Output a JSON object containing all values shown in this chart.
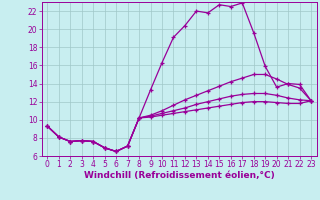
{
  "xlabel": "Windchill (Refroidissement éolien,°C)",
  "bg_color": "#c8eef0",
  "line_color": "#990099",
  "xlim": [
    -0.5,
    23.5
  ],
  "ylim": [
    6,
    23
  ],
  "xticks": [
    0,
    1,
    2,
    3,
    4,
    5,
    6,
    7,
    8,
    9,
    10,
    11,
    12,
    13,
    14,
    15,
    16,
    17,
    18,
    19,
    20,
    21,
    22,
    23
  ],
  "yticks": [
    6,
    8,
    10,
    12,
    14,
    16,
    18,
    20,
    22
  ],
  "grid_color": "#a0c8c8",
  "curve1_x": [
    0,
    1,
    2,
    3,
    4,
    5,
    6,
    7,
    8,
    9,
    10,
    11,
    12,
    13,
    14,
    15,
    16,
    17,
    18,
    19,
    20,
    21,
    22,
    23
  ],
  "curve1_y": [
    9.3,
    8.1,
    7.6,
    7.7,
    7.6,
    6.9,
    6.5,
    7.1,
    10.2,
    13.3,
    16.3,
    19.1,
    20.4,
    22.0,
    21.8,
    22.7,
    22.5,
    22.9,
    19.6,
    15.9,
    13.6,
    14.0,
    13.9,
    12.1
  ],
  "curve2_x": [
    0,
    1,
    2,
    3,
    4,
    5,
    6,
    7,
    8,
    9,
    10,
    11,
    12,
    13,
    14,
    15,
    16,
    17,
    18,
    19,
    20,
    21,
    22,
    23
  ],
  "curve2_y": [
    9.3,
    8.1,
    7.6,
    7.7,
    7.6,
    6.9,
    6.5,
    7.1,
    10.2,
    10.5,
    11.0,
    11.6,
    12.2,
    12.7,
    13.2,
    13.7,
    14.2,
    14.6,
    15.0,
    15.0,
    14.5,
    13.9,
    13.5,
    12.1
  ],
  "curve3_x": [
    0,
    1,
    2,
    3,
    4,
    5,
    6,
    7,
    8,
    9,
    10,
    11,
    12,
    13,
    14,
    15,
    16,
    17,
    18,
    19,
    20,
    21,
    22,
    23
  ],
  "curve3_y": [
    9.3,
    8.1,
    7.6,
    7.7,
    7.6,
    6.9,
    6.5,
    7.1,
    10.2,
    10.4,
    10.7,
    11.0,
    11.3,
    11.7,
    12.0,
    12.3,
    12.6,
    12.8,
    12.9,
    12.9,
    12.7,
    12.4,
    12.2,
    12.1
  ],
  "curve4_x": [
    0,
    1,
    2,
    3,
    4,
    5,
    6,
    7,
    8,
    9,
    10,
    11,
    12,
    13,
    14,
    15,
    16,
    17,
    18,
    19,
    20,
    21,
    22,
    23
  ],
  "curve4_y": [
    9.3,
    8.1,
    7.6,
    7.7,
    7.6,
    6.9,
    6.5,
    7.1,
    10.2,
    10.3,
    10.5,
    10.7,
    10.9,
    11.1,
    11.3,
    11.5,
    11.7,
    11.9,
    12.0,
    12.0,
    11.9,
    11.8,
    11.8,
    12.1
  ],
  "tick_fontsize": 5.5,
  "label_fontsize": 6.5
}
